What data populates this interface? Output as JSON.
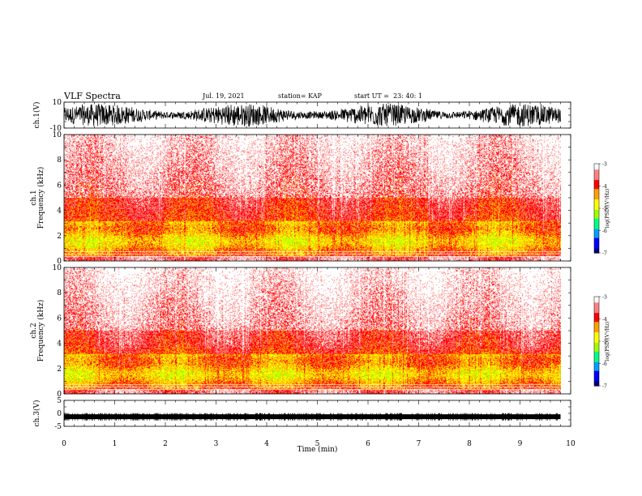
{
  "header": {
    "title": "VLF Spectra",
    "date": "Jul. 19, 2021",
    "station": "station= KAP",
    "start": "start UT =  23: 40: 1"
  },
  "chart_data": [
    {
      "type": "line",
      "id": "ch1-waveform",
      "ylabel": "ch.1(V)",
      "ylim": [
        -10,
        10
      ],
      "yticks": [
        -10,
        10
      ],
      "xlim": [
        0,
        10
      ],
      "data_extent_min": 9.8,
      "amplitude_v": [
        -9,
        9
      ]
    },
    {
      "type": "heatmap",
      "id": "ch1-spectrogram",
      "ylabel": "ch.1\nFrequency (kHz)",
      "ylim": [
        0,
        10
      ],
      "yticks": [
        0,
        2,
        4,
        6,
        8,
        10
      ],
      "xlim": [
        0,
        10
      ],
      "data_extent_min": 9.8,
      "colorbar": {
        "label": "log(PSD)(V²/Hz)",
        "range": [
          -7,
          -3
        ],
        "ticks": [
          -3,
          -4,
          -5,
          -6,
          -7
        ]
      }
    },
    {
      "type": "heatmap",
      "id": "ch2-spectrogram",
      "ylabel": "ch.2\nFrequency (kHz)",
      "ylim": [
        0,
        10
      ],
      "yticks": [
        0,
        2,
        4,
        6,
        8,
        10
      ],
      "xlim": [
        0,
        10
      ],
      "data_extent_min": 9.8,
      "colorbar": {
        "label": "log(PSD)(V²/Hz)",
        "range": [
          -7,
          -3
        ],
        "ticks": [
          -3,
          -4,
          -5,
          -6,
          -7
        ]
      }
    },
    {
      "type": "line",
      "id": "ch3-waveform",
      "ylabel": "ch.3(V)",
      "ylim": [
        -5,
        5
      ],
      "yticks": [
        -5,
        0,
        5
      ],
      "xlim": [
        0,
        10
      ],
      "xticks": [
        0,
        1,
        2,
        3,
        4,
        5,
        6,
        7,
        8,
        9,
        10
      ],
      "xlabel": "Time (min)",
      "data_extent_min": 9.8,
      "level_v": -1.3
    }
  ],
  "colors": {
    "colormap": [
      "#00007a",
      "#0000ff",
      "#00a0ff",
      "#00ff80",
      "#a0ff00",
      "#ffff00",
      "#ffa000",
      "#ff0000",
      "#ff8080",
      "#ffffff"
    ]
  }
}
